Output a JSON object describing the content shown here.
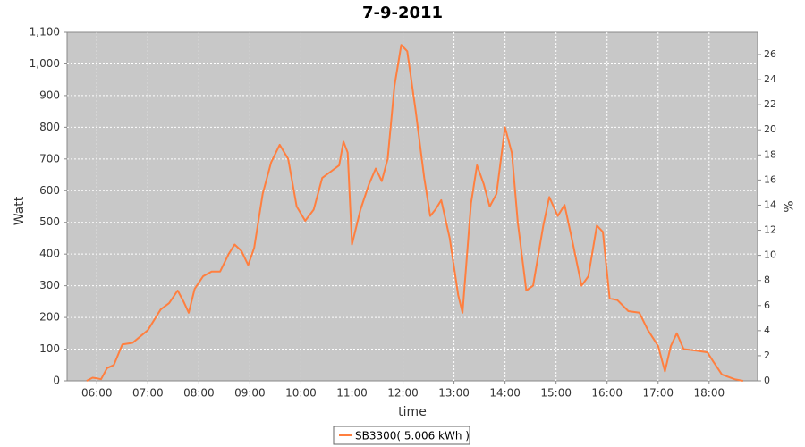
{
  "chart_data": {
    "type": "line",
    "title": "7-9-2011",
    "x_label": "time",
    "y_label": "Watt",
    "y2_label": "%",
    "x": [
      "05:48",
      "05:55",
      "06:00",
      "06:05",
      "06:12",
      "06:20",
      "06:30",
      "06:42",
      "07:00",
      "07:15",
      "07:25",
      "07:35",
      "07:42",
      "07:48",
      "07:55",
      "08:05",
      "08:15",
      "08:25",
      "08:35",
      "08:42",
      "08:50",
      "08:58",
      "09:05",
      "09:15",
      "09:25",
      "09:35",
      "09:45",
      "09:55",
      "10:05",
      "10:15",
      "10:25",
      "10:35",
      "10:45",
      "10:50",
      "10:55",
      "11:00",
      "11:10",
      "11:20",
      "11:28",
      "11:35",
      "11:42",
      "11:50",
      "11:58",
      "12:05",
      "12:15",
      "12:25",
      "12:32",
      "12:38",
      "12:45",
      "12:55",
      "13:05",
      "13:10",
      "13:20",
      "13:27",
      "13:35",
      "13:42",
      "13:50",
      "14:00",
      "14:08",
      "14:15",
      "14:25",
      "14:33",
      "14:45",
      "14:52",
      "15:02",
      "15:10",
      "15:20",
      "15:30",
      "15:38",
      "15:48",
      "15:55",
      "16:03",
      "16:12",
      "16:25",
      "16:38",
      "16:48",
      "17:00",
      "17:08",
      "17:15",
      "17:22",
      "17:30",
      "17:45",
      "17:58",
      "18:05",
      "18:15",
      "18:30",
      "18:40"
    ],
    "series": [
      {
        "name": "SB3300( 5.006 kWh )",
        "color": "#ff7f3f",
        "values": [
          0,
          10,
          8,
          5,
          40,
          50,
          115,
          120,
          160,
          225,
          245,
          285,
          250,
          215,
          290,
          330,
          345,
          345,
          400,
          430,
          410,
          365,
          420,
          590,
          690,
          745,
          700,
          550,
          505,
          540,
          640,
          660,
          680,
          755,
          720,
          430,
          540,
          620,
          670,
          630,
          700,
          930,
          1060,
          1040,
          850,
          640,
          520,
          540,
          570,
          450,
          270,
          215,
          560,
          680,
          620,
          550,
          590,
          800,
          720,
          500,
          285,
          300,
          490,
          580,
          520,
          555,
          430,
          300,
          330,
          490,
          470,
          260,
          255,
          220,
          215,
          160,
          110,
          30,
          110,
          150,
          100,
          95,
          90,
          60,
          20,
          5,
          0
        ]
      }
    ],
    "xlim": [
      "05:25",
      "18:57"
    ],
    "xticks": [
      "06:00",
      "07:00",
      "08:00",
      "09:00",
      "10:00",
      "11:00",
      "12:00",
      "13:00",
      "14:00",
      "15:00",
      "16:00",
      "17:00",
      "18:00"
    ],
    "ylim": [
      0,
      1100
    ],
    "yticks": [
      0,
      100,
      200,
      300,
      400,
      500,
      600,
      700,
      800,
      900,
      {
        "value": 1000,
        "label": "1,000"
      },
      {
        "value": 1100,
        "label": "1,100"
      }
    ],
    "y2lim": [
      0,
      27.78
    ],
    "y2ticks": [
      0,
      2,
      4,
      6,
      8,
      10,
      12,
      14,
      16,
      18,
      20,
      22,
      24,
      26
    ],
    "grid": true,
    "legend": "bottom",
    "background": "#c8c8c8"
  }
}
